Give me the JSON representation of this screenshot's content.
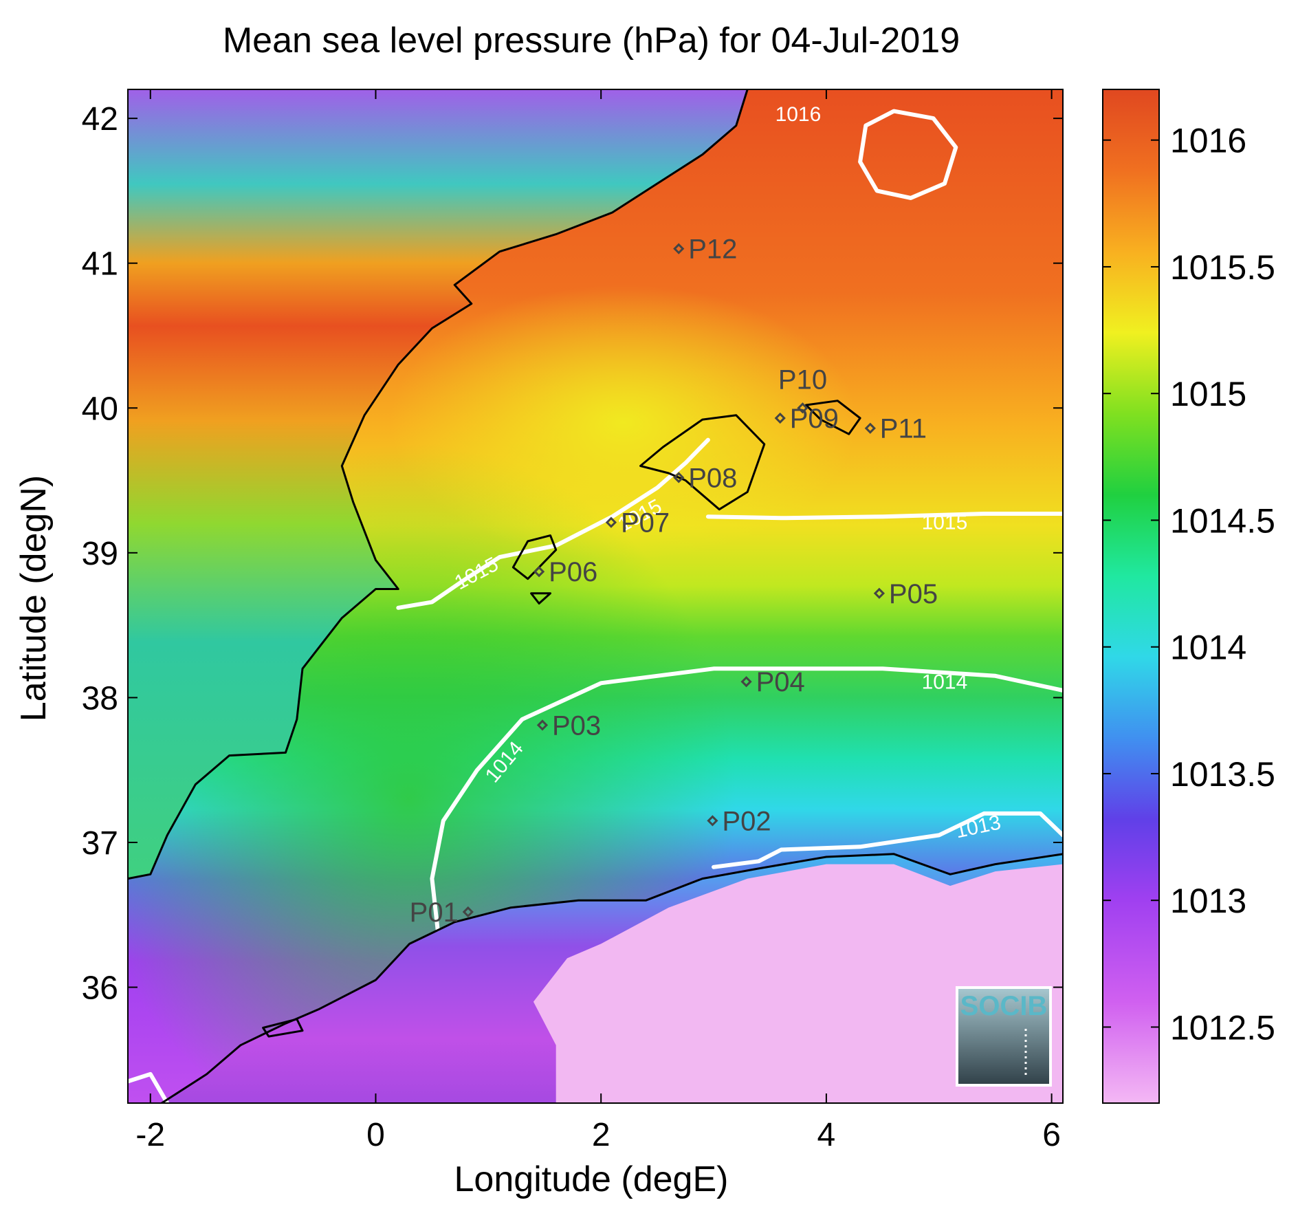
{
  "title": "Mean sea level pressure (hPa) for 04-Jul-2019",
  "x_axis": {
    "label": "Longitude (degE)",
    "range": [
      -2.2,
      6.1
    ],
    "ticks": [
      -2,
      0,
      2,
      4,
      6
    ],
    "tick_labels": [
      "-2",
      "0",
      "2",
      "4",
      "6"
    ]
  },
  "y_axis": {
    "label": "Latitude (degN)",
    "range": [
      35.2,
      42.2
    ],
    "ticks": [
      36,
      37,
      38,
      39,
      40,
      41,
      42
    ],
    "tick_labels": [
      "36",
      "37",
      "38",
      "39",
      "40",
      "41",
      "42"
    ]
  },
  "colorbar": {
    "range": [
      1012.2,
      1016.2
    ],
    "ticks": [
      1012.5,
      1013,
      1013.5,
      1014,
      1014.5,
      1015,
      1015.5,
      1016
    ],
    "tick_labels": [
      "1012.5",
      "1013",
      "1013.5",
      "1014",
      "1014.5",
      "1015",
      "1015.5",
      "1016"
    ],
    "colormap": [
      "#f4b8f4",
      "#c050f0",
      "#7040e8",
      "#4090f0",
      "#30e0e0",
      "#20e8a0",
      "#30d030",
      "#a0e020",
      "#f0f020",
      "#f8c020",
      "#f89020",
      "#f06020",
      "#e04820"
    ]
  },
  "contour_labels": [
    {
      "text": "1016",
      "lon": 3.75,
      "lat": 42.02,
      "angle": 0
    },
    {
      "text": "1015",
      "lon": 5.05,
      "lat": 39.2,
      "angle": 0
    },
    {
      "text": "1015",
      "lon": 0.9,
      "lat": 38.85,
      "angle": -28
    },
    {
      "text": "1015",
      "lon": 2.35,
      "lat": 39.25,
      "angle": -28
    },
    {
      "text": "1014",
      "lon": 5.05,
      "lat": 38.1,
      "angle": 0
    },
    {
      "text": "1014",
      "lon": 1.15,
      "lat": 37.55,
      "angle": -50
    },
    {
      "text": "1013",
      "lon": 5.35,
      "lat": 37.1,
      "angle": -12
    }
  ],
  "points": [
    {
      "name": "P01",
      "lon": 0.82,
      "lat": 36.52
    },
    {
      "name": "P02",
      "lon": 2.99,
      "lat": 37.15
    },
    {
      "name": "P03",
      "lon": 1.48,
      "lat": 37.81
    },
    {
      "name": "P04",
      "lon": 3.29,
      "lat": 38.11
    },
    {
      "name": "P05",
      "lon": 4.47,
      "lat": 38.72
    },
    {
      "name": "P06",
      "lon": 1.45,
      "lat": 38.87
    },
    {
      "name": "P07",
      "lon": 2.09,
      "lat": 39.21
    },
    {
      "name": "P08",
      "lon": 2.69,
      "lat": 39.52
    },
    {
      "name": "P09",
      "lon": 3.59,
      "lat": 39.93
    },
    {
      "name": "P10",
      "lon": 3.79,
      "lat": 40.0
    },
    {
      "name": "P11",
      "lon": 4.39,
      "lat": 39.86
    },
    {
      "name": "P12",
      "lon": 2.69,
      "lat": 41.1
    }
  ],
  "logo": {
    "text": "SOCIB",
    "color": "#5ab8c8"
  }
}
